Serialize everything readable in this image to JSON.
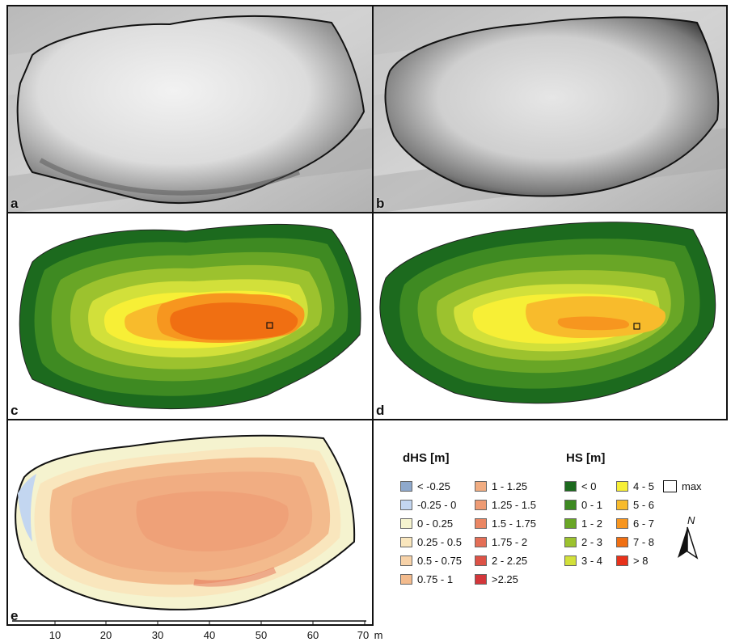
{
  "panels": {
    "a": {
      "label": "a"
    },
    "b": {
      "label": "b"
    },
    "c": {
      "label": "c"
    },
    "d": {
      "label": "d"
    },
    "e": {
      "label": "e"
    }
  },
  "legend_dhs": {
    "title": "dHS [m]",
    "items": [
      {
        "label": "< -0.25",
        "color": "#8fa9cc"
      },
      {
        "label": "-0.25 - 0",
        "color": "#c3d6f0"
      },
      {
        "label": "0 - 0.25",
        "color": "#f5f3cf"
      },
      {
        "label": "0.25 - 0.5",
        "color": "#f9e6bd"
      },
      {
        "label": "0.5 - 0.75",
        "color": "#f7d2a8"
      },
      {
        "label": "0.75 - 1",
        "color": "#f3bb8d"
      },
      {
        "label": "1 - 1.25",
        "color": "#f1ad82"
      },
      {
        "label": "1.25 - 1.5",
        "color": "#ee9b74"
      },
      {
        "label": "1.5 - 1.75",
        "color": "#ea8663"
      },
      {
        "label": "1.75 - 2",
        "color": "#e46e56"
      },
      {
        "label": "2 - 2.25",
        "color": "#dd5246"
      },
      {
        "label": ">2.25",
        "color": "#d3363a"
      }
    ]
  },
  "legend_hs": {
    "title": "HS [m]",
    "items": [
      {
        "label": "< 0",
        "color": "#1c6a1e"
      },
      {
        "label": "0 - 1",
        "color": "#3e8a22"
      },
      {
        "label": "1 - 2",
        "color": "#69a626"
      },
      {
        "label": "2 - 3",
        "color": "#9cc22e"
      },
      {
        "label": "3 - 4",
        "color": "#d2e03a"
      },
      {
        "label": "4 - 5",
        "color": "#f7ef36"
      },
      {
        "label": "5 - 6",
        "color": "#f8bb2c"
      },
      {
        "label": "6 - 7",
        "color": "#f7961f"
      },
      {
        "label": "7 - 8",
        "color": "#f06f12"
      },
      {
        "label": "> 8",
        "color": "#e8321b"
      }
    ],
    "max_label": "max"
  },
  "north_arrow": {
    "label": "N"
  },
  "scale_bar": {
    "ticks": [
      "10",
      "20",
      "30",
      "40",
      "50",
      "60",
      "70"
    ],
    "unit": "m"
  }
}
